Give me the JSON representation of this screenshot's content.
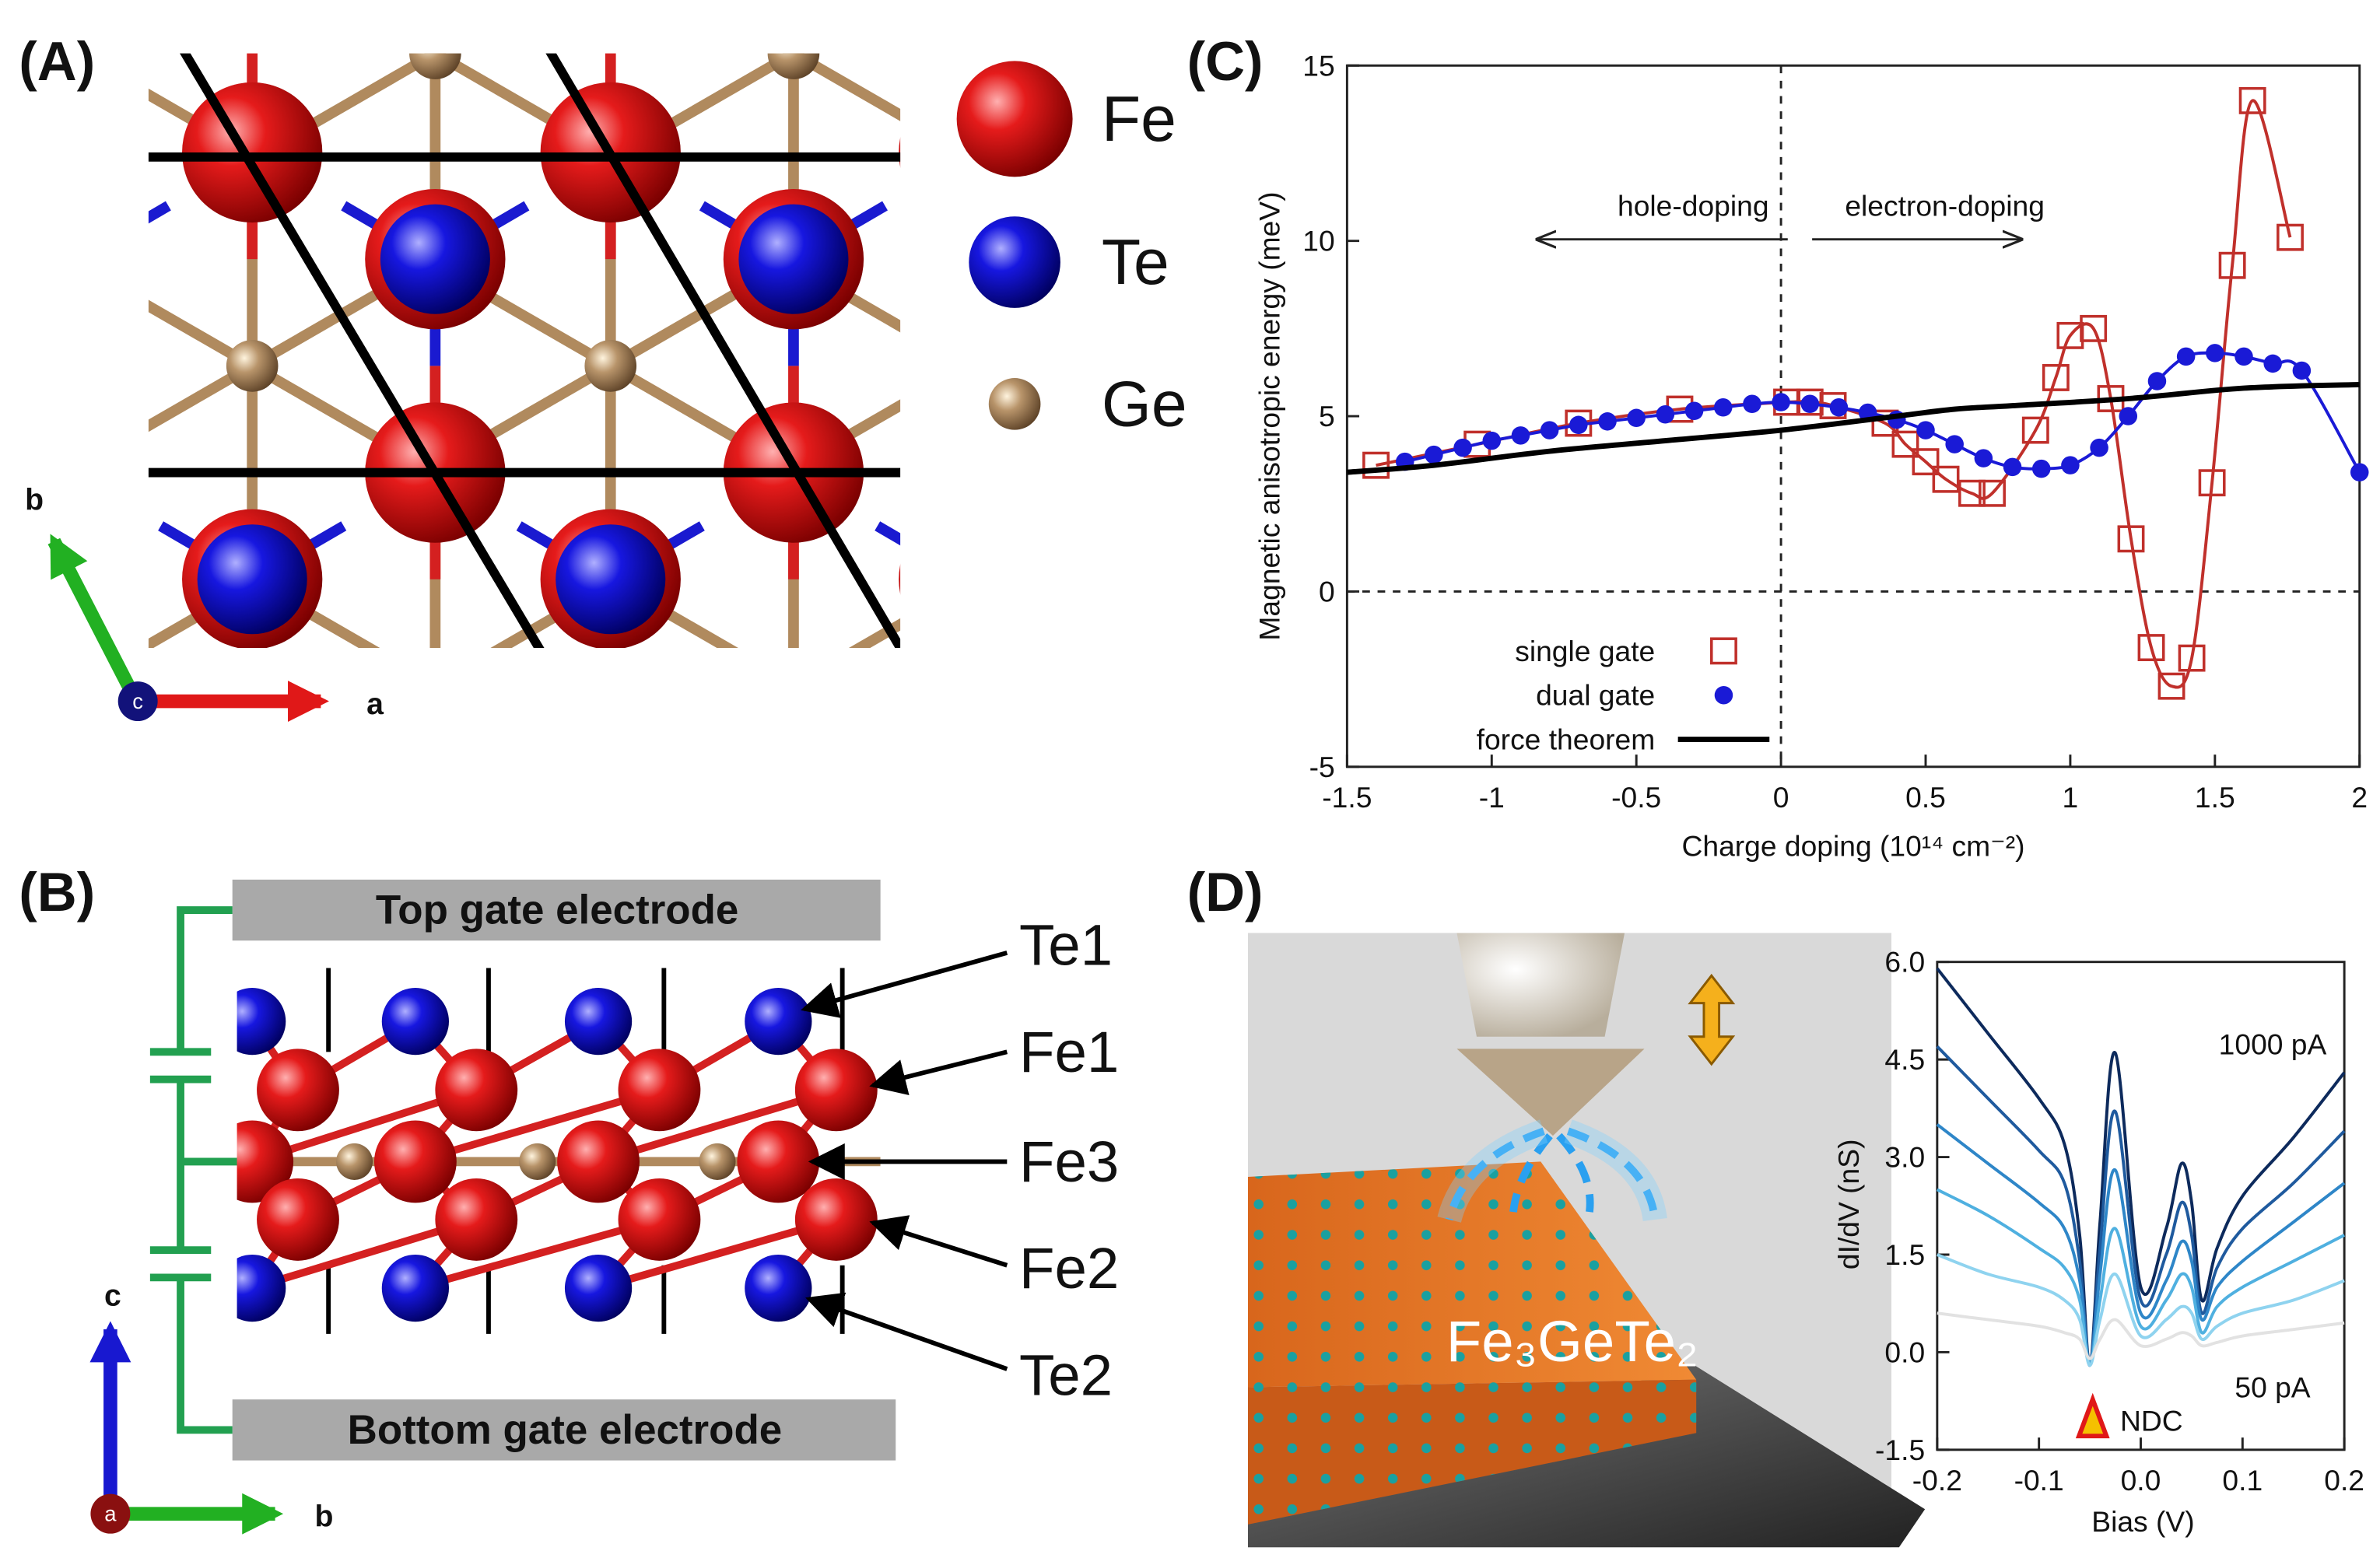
{
  "panels": {
    "A": {
      "label": "(A)",
      "legend": [
        "Fe",
        "Te",
        "Ge"
      ],
      "axes": [
        "b",
        "c",
        "a"
      ]
    },
    "B": {
      "label": "(B)",
      "electrodes": [
        "Top gate electrode",
        "Bottom gate electrode"
      ],
      "atoms": [
        "Te1",
        "Fe1",
        "Fe3",
        "Fe2",
        "Te2"
      ],
      "axes": [
        "c",
        "a",
        "b"
      ]
    },
    "C": {
      "label": "(C)"
    },
    "D": {
      "label": "(D)",
      "material": "Fe₃GeTe₂"
    }
  },
  "chart_data": [
    {
      "type": "line",
      "xlabel": "Charge doping (10¹⁴ cm⁻²)",
      "ylabel": "Magnetic anisotropic energy (meV)",
      "annotations": [
        "hole-doping",
        "electron-doping"
      ],
      "xlim": [
        -1.5,
        2
      ],
      "ylim": [
        -5,
        15
      ],
      "xticks": [
        -1.5,
        -1,
        -0.5,
        0,
        0.5,
        1,
        1.5,
        2
      ],
      "yticks": [
        -5,
        0,
        5,
        10,
        15
      ],
      "grid": false,
      "legend": "lower left",
      "series": [
        {
          "name": "single gate",
          "color": "#c0302b",
          "marker": "open-square",
          "x": [
            -1.4,
            -1.05,
            -0.7,
            -0.35,
            0.02,
            0.1,
            0.18,
            0.36,
            0.43,
            0.5,
            0.57,
            0.66,
            0.73,
            0.88,
            0.95,
            1.0,
            1.08,
            1.14,
            1.21,
            1.28,
            1.35,
            1.42,
            1.49,
            1.56,
            1.63,
            1.76
          ],
          "values": [
            3.6,
            4.2,
            4.8,
            5.2,
            5.4,
            5.4,
            5.3,
            4.8,
            4.2,
            3.7,
            3.2,
            2.8,
            2.8,
            4.6,
            6.1,
            7.3,
            7.5,
            5.5,
            1.5,
            -1.6,
            -2.7,
            -1.9,
            3.1,
            9.3,
            14,
            10.1
          ]
        },
        {
          "name": "dual gate",
          "color": "#1a1ad6",
          "marker": "dot",
          "x": [
            -1.3,
            -1.2,
            -1.1,
            -1,
            -0.9,
            -0.8,
            -0.7,
            -0.6,
            -0.5,
            -0.4,
            -0.3,
            -0.2,
            -0.1,
            0,
            0.1,
            0.2,
            0.3,
            0.4,
            0.5,
            0.6,
            0.7,
            0.8,
            0.9,
            1.0,
            1.1,
            1.2,
            1.3,
            1.4,
            1.5,
            1.6,
            1.7,
            1.8,
            2.0
          ],
          "values": [
            3.7,
            3.9,
            4.1,
            4.3,
            4.45,
            4.6,
            4.75,
            4.85,
            4.95,
            5.05,
            5.15,
            5.25,
            5.35,
            5.4,
            5.35,
            5.25,
            5.1,
            4.9,
            4.6,
            4.2,
            3.8,
            3.55,
            3.5,
            3.6,
            4.1,
            5.0,
            6.0,
            6.7,
            6.8,
            6.7,
            6.5,
            6.3,
            3.4
          ]
        },
        {
          "name": "force theorem",
          "color": "#000000",
          "marker": "none",
          "x": [
            -1.5,
            -1.2,
            -0.8,
            -0.4,
            0,
            0.4,
            0.6,
            0.8,
            1.2,
            1.6,
            2
          ],
          "values": [
            3.4,
            3.6,
            4.0,
            4.3,
            4.6,
            5.0,
            5.2,
            5.3,
            5.5,
            5.8,
            5.9
          ]
        }
      ]
    },
    {
      "type": "line",
      "xlabel": "Bias (V)",
      "ylabel": "dI/dV (nS)",
      "annotations": [
        "1000 pA",
        "50 pA",
        "NDC"
      ],
      "xlim": [
        -0.2,
        0.2
      ],
      "ylim": [
        -1.5,
        6
      ],
      "xticks": [
        -0.2,
        -0.1,
        {
          "value": 0,
          "label": "0.0"
        },
        0.1,
        0.2
      ],
      "yticks": [
        -1.5,
        {
          "value": 0,
          "label": "0.0"
        },
        1.5,
        {
          "value": 3,
          "label": "3.0"
        },
        4.5,
        {
          "value": 6,
          "label": "6.0"
        }
      ],
      "grid": false,
      "x": [
        -0.2,
        -0.15,
        -0.1,
        -0.075,
        -0.06,
        -0.05,
        -0.04,
        -0.025,
        0,
        0.025,
        0.04,
        0.05,
        0.06,
        0.075,
        0.1,
        0.15,
        0.2
      ],
      "series": [
        {
          "color": "#0d2a5c",
          "marker": "none",
          "values": [
            5.9,
            4.9,
            3.9,
            3.2,
            1.8,
            -0.2,
            2.0,
            4.6,
            1.0,
            1.9,
            2.9,
            2.3,
            0.8,
            1.6,
            2.4,
            3.3,
            4.3
          ]
        },
        {
          "color": "#1f5a9e",
          "marker": "none",
          "values": [
            4.7,
            3.9,
            3.1,
            2.6,
            1.4,
            -0.2,
            1.6,
            3.7,
            0.8,
            1.5,
            2.3,
            1.8,
            0.6,
            1.3,
            1.9,
            2.6,
            3.4
          ]
        },
        {
          "color": "#2e86c8",
          "marker": "none",
          "values": [
            3.5,
            2.9,
            2.3,
            1.9,
            1.1,
            -0.2,
            1.2,
            2.8,
            0.6,
            1.1,
            1.7,
            1.4,
            0.5,
            1.0,
            1.4,
            2.0,
            2.6
          ]
        },
        {
          "color": "#4fb0e0",
          "marker": "none",
          "values": [
            2.5,
            2.1,
            1.6,
            1.3,
            0.8,
            -0.2,
            0.8,
            1.9,
            0.4,
            0.8,
            1.2,
            1.0,
            0.3,
            0.7,
            1.0,
            1.4,
            1.8
          ]
        },
        {
          "color": "#8fd3ef",
          "marker": "none",
          "values": [
            1.5,
            1.2,
            1.0,
            0.8,
            0.5,
            -0.2,
            0.5,
            1.2,
            0.25,
            0.5,
            0.7,
            0.6,
            0.2,
            0.4,
            0.6,
            0.8,
            1.1
          ]
        },
        {
          "color": "#e2e2e2",
          "marker": "none",
          "values": [
            0.6,
            0.5,
            0.4,
            0.3,
            0.2,
            -0.1,
            0.2,
            0.5,
            0.1,
            0.2,
            0.3,
            0.25,
            0.1,
            0.15,
            0.25,
            0.35,
            0.45
          ]
        }
      ]
    }
  ]
}
